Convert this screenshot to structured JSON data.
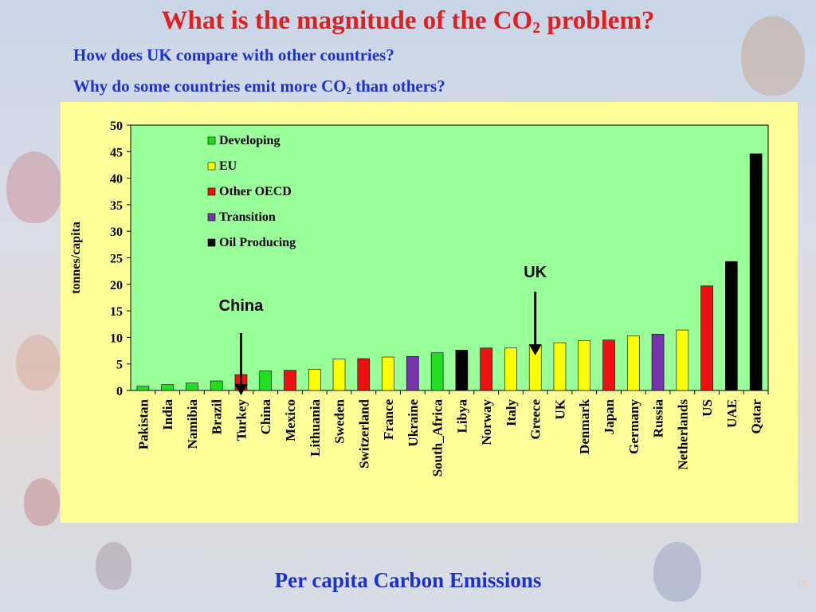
{
  "slide": {
    "title_main": "What is the magnitude of the CO",
    "title_sub": "2",
    "title_end": " problem?",
    "subtitle1": "How does UK compare with other countries?",
    "subtitle2_main": "Why do some countries emit more CO",
    "subtitle2_sub": "2",
    "subtitle2_end": " than others?",
    "footer": "Per capita Carbon Emissions",
    "page_number": "12"
  },
  "colors": {
    "title": "#e02020",
    "subtitle": "#1c2fd0",
    "chart_background": "#ffff99",
    "plot_background": "#99ff99"
  },
  "chart_data": {
    "type": "bar",
    "ylabel": "tonnes/capita",
    "ylim": [
      0,
      50
    ],
    "yticks": [
      0,
      5,
      10,
      15,
      20,
      25,
      30,
      35,
      40,
      45,
      50
    ],
    "categories": [
      "Pakistan",
      "India",
      "Namibia",
      "Brazil",
      "Turkey",
      "China",
      "Mexico",
      "Lithuania",
      "Sweden",
      "Switzerland",
      "France",
      "Ukraine",
      "South_Africa",
      "Libya",
      "Norway",
      "Italy",
      "Greece",
      "UK",
      "Denmark",
      "Japan",
      "Germany",
      "Russia",
      "Netherlands",
      "US",
      "UAE",
      "Qatar"
    ],
    "values": [
      0.8,
      1.1,
      1.4,
      1.8,
      3.0,
      3.7,
      3.8,
      4.0,
      5.9,
      6.0,
      6.3,
      6.4,
      7.1,
      7.6,
      8.0,
      8.0,
      8.6,
      9.0,
      9.4,
      9.5,
      10.3,
      10.6,
      11.4,
      19.7,
      24.3,
      44.6
    ],
    "groups": [
      "Developing",
      "Developing",
      "Developing",
      "Developing",
      "Other OECD",
      "Developing",
      "Other OECD",
      "EU",
      "EU",
      "Other OECD",
      "EU",
      "Transition",
      "Developing",
      "Oil Producing",
      "Other OECD",
      "EU",
      "EU",
      "EU",
      "EU",
      "Other OECD",
      "EU",
      "Transition",
      "EU",
      "Other OECD",
      "Oil Producing",
      "Oil Producing"
    ],
    "legend": [
      {
        "name": "Developing",
        "color": "#22dd22"
      },
      {
        "name": "EU",
        "color": "#ffff00"
      },
      {
        "name": "Other OECD",
        "color": "#ee1111"
      },
      {
        "name": "Transition",
        "color": "#7733aa"
      },
      {
        "name": "Oil Producing",
        "color": "#000000"
      }
    ],
    "legend_position": "top-left",
    "annotations": [
      {
        "text": "China",
        "target": "Turkey"
      },
      {
        "text": "UK",
        "target": "Greece"
      }
    ]
  }
}
